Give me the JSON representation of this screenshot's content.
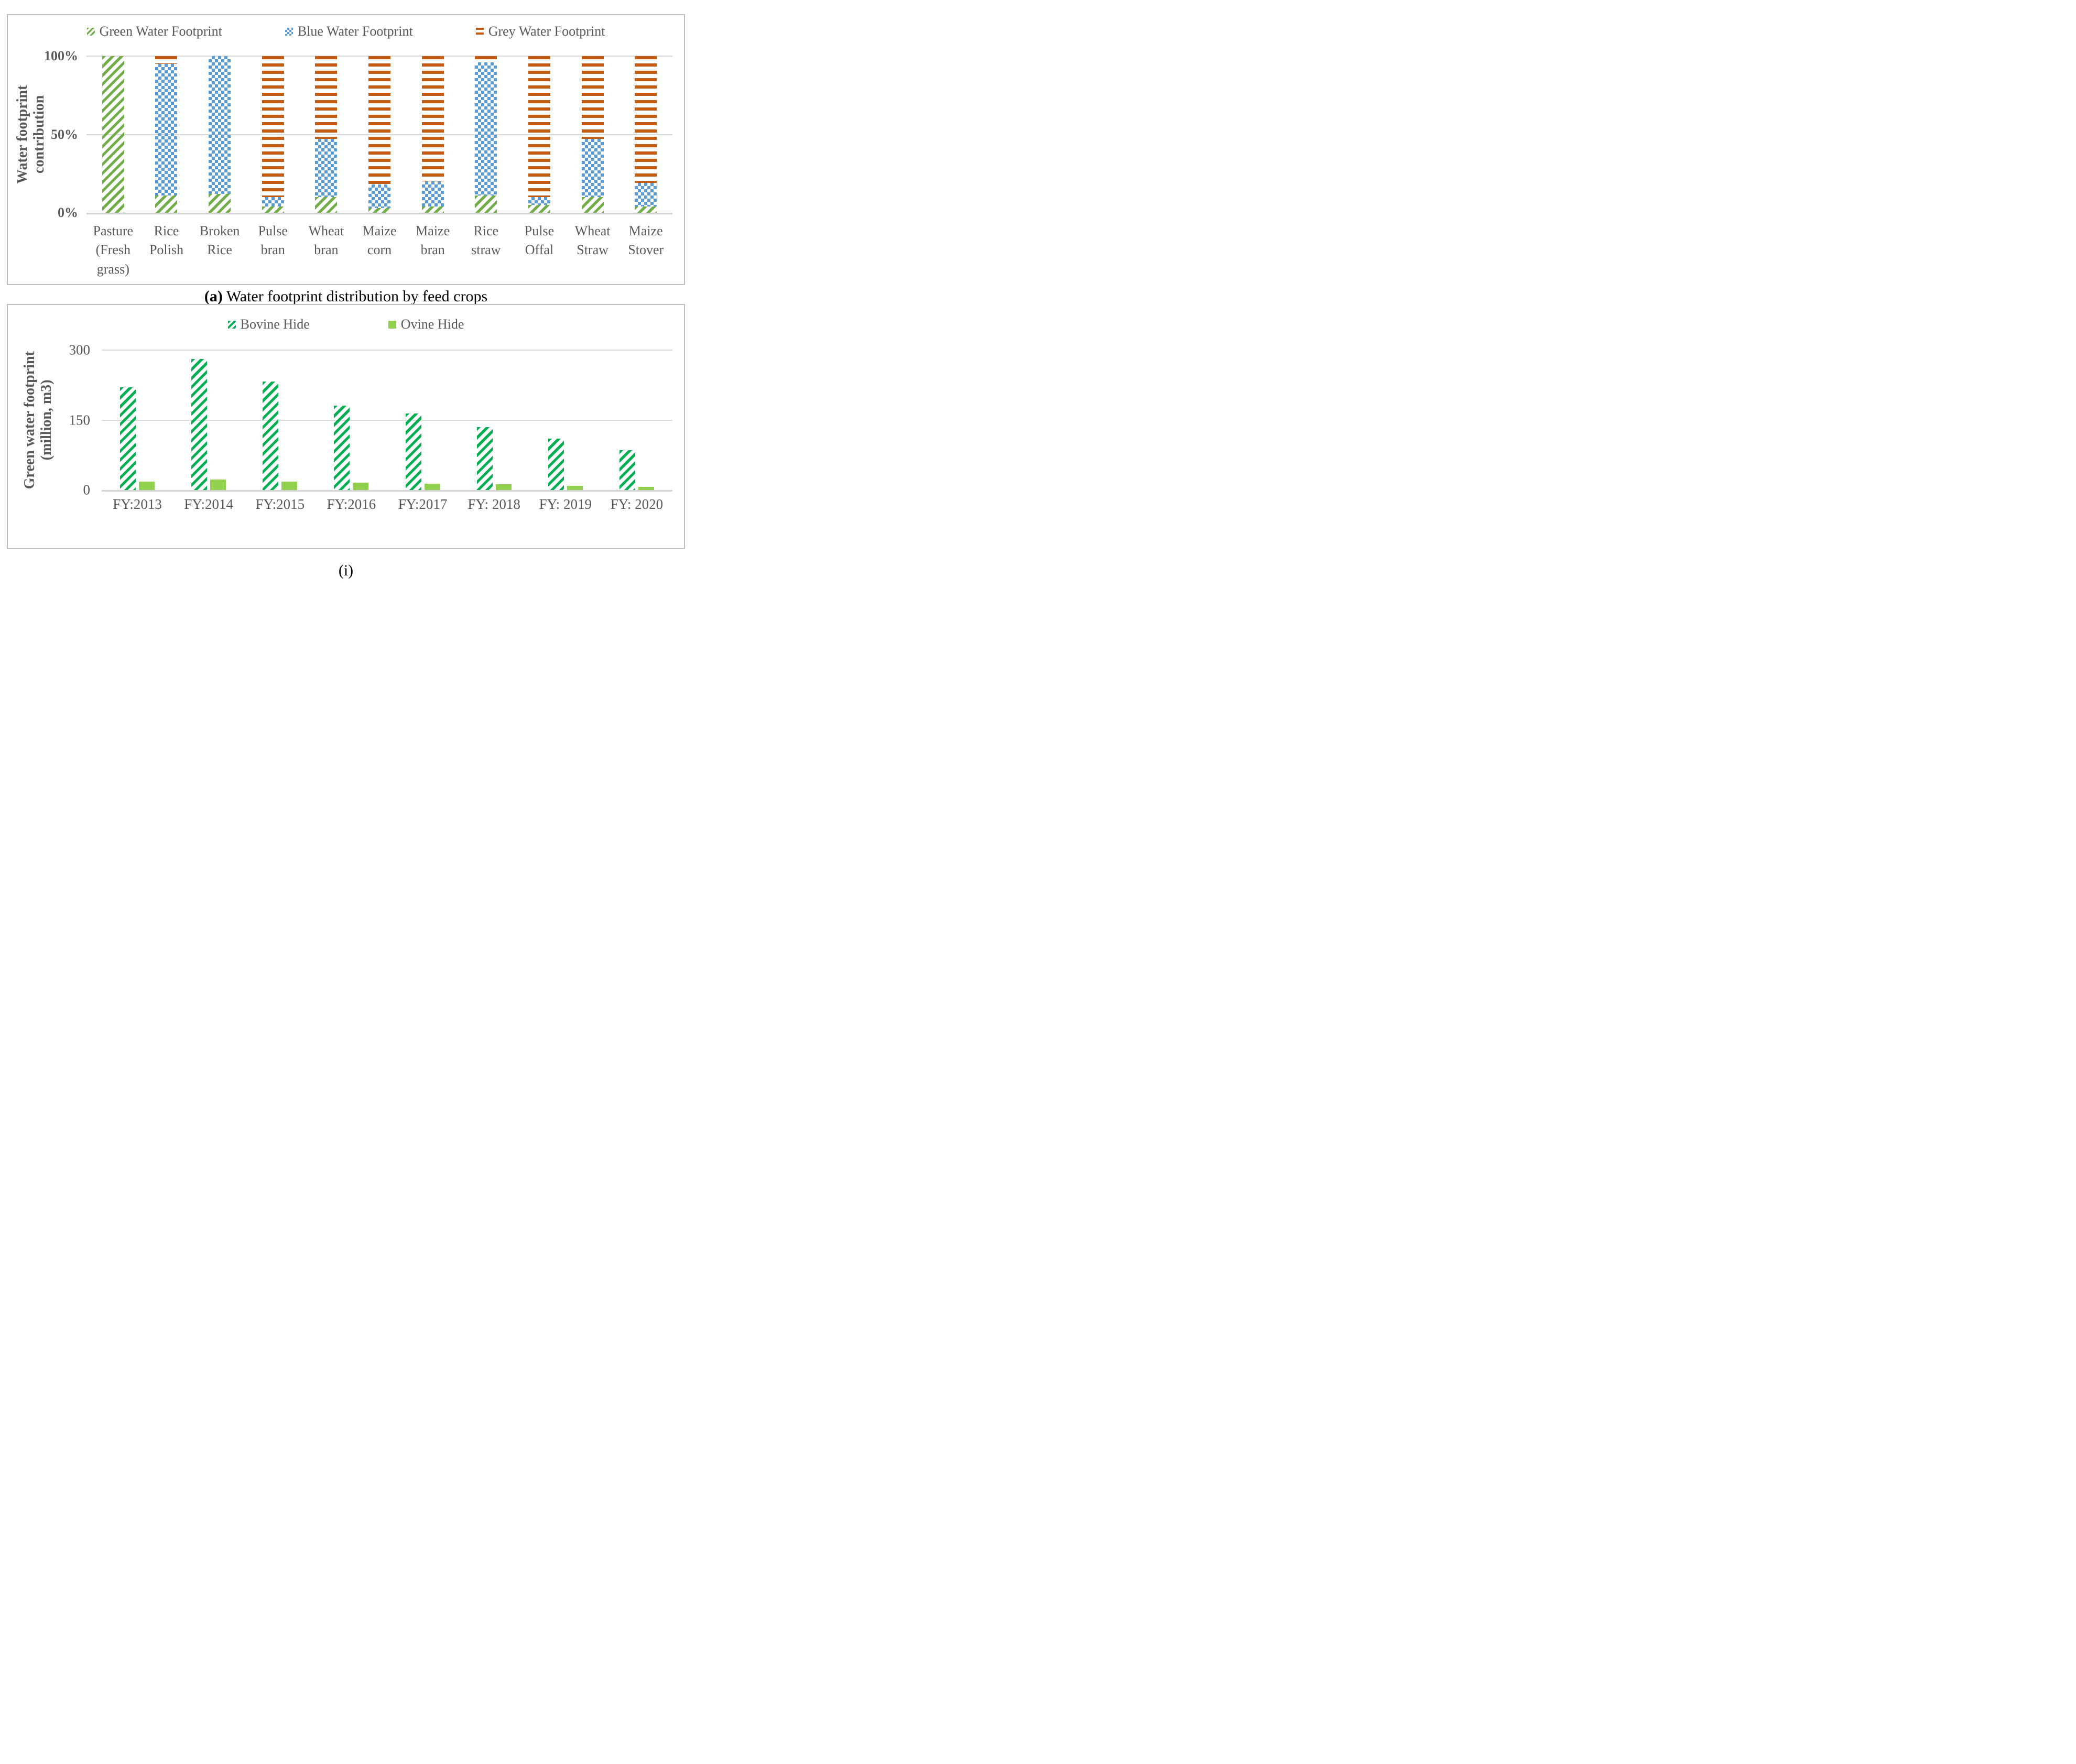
{
  "captions": {
    "a_prefix": "(a)",
    "a_text": " Water footprint distribution by feed crops",
    "i": "(i)"
  },
  "colors": {
    "green_water": "#70AD47",
    "blue_water": "#5B9BD5",
    "grey_water_orange": "#C55A11",
    "bovine_green": "#00B050",
    "ovine_green": "#92D050",
    "axis_text": "#595959",
    "gridline": "#D9D9D9",
    "panel_border": "#BFBFBF"
  },
  "chart_data": [
    {
      "type": "bar",
      "subtype": "stacked-100-percent",
      "title": "Water footprint distribution by feed crops",
      "ylabel": "Water footprint contribution",
      "y_ticks": [
        "100%",
        "50%",
        "0%"
      ],
      "ylim": [
        0,
        100
      ],
      "grid": true,
      "legend_position": "top",
      "categories": [
        "Pasture (Fresh grass)",
        "Rice Polish",
        "Broken Rice",
        "Pulse bran",
        "Wheat bran",
        "Maize corn",
        "Maize bran",
        "Rice straw",
        "Pulse Offal",
        "Wheat Straw",
        "Maize Stover"
      ],
      "series": [
        {
          "name": "Green Water Footprint",
          "pattern": "green-diagonal-hatch",
          "values": [
            100,
            11,
            12,
            4,
            10,
            3,
            4,
            11,
            5,
            10,
            4
          ]
        },
        {
          "name": "Blue Water Footprint",
          "pattern": "blue-dotted-squares",
          "values": [
            0,
            84,
            88,
            6,
            37,
            15,
            16,
            85,
            5,
            37,
            15
          ]
        },
        {
          "name": "Grey Water Footprint",
          "pattern": "orange-horizontal-lines",
          "values": [
            0,
            5,
            0,
            90,
            53,
            82,
            80,
            4,
            90,
            53,
            81
          ]
        }
      ]
    },
    {
      "type": "bar",
      "subtype": "grouped",
      "title": "(i)",
      "ylabel": "Green water footprint (million, m3)",
      "ylabel_line1": "Green water footprint",
      "ylabel_line2": "(million, m3)",
      "y_ticks": [
        "300",
        "150",
        "0"
      ],
      "ylim": [
        0,
        300
      ],
      "grid": true,
      "legend_position": "top",
      "categories": [
        "FY:2013",
        "FY:2014",
        "FY:2015",
        "FY:2016",
        "FY:2017",
        "FY: 2018",
        "FY: 2019",
        "FY: 2020"
      ],
      "series": [
        {
          "name": "Bovine Hide",
          "pattern": "green-diagonal-hatch",
          "values": [
            220,
            281,
            233,
            181,
            164,
            135,
            110,
            85
          ]
        },
        {
          "name": "Ovine Hide",
          "pattern": "solid-light-green",
          "values": [
            18,
            23,
            18,
            16,
            14,
            12,
            9,
            7
          ]
        }
      ]
    }
  ]
}
